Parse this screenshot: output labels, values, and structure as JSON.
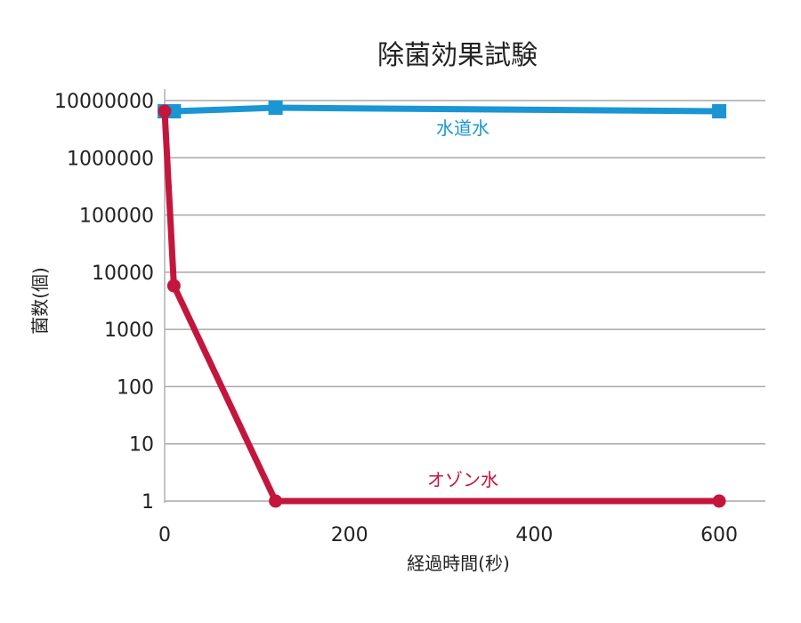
{
  "chart_data": {
    "type": "line",
    "title": "除菌効果試験",
    "xlabel": "経過時間(秒)",
    "ylabel": "菌数(個)",
    "x_ticks": [
      0,
      200,
      400,
      600
    ],
    "y_ticks": [
      "1",
      "10",
      "100",
      "1000",
      "10000",
      "100000",
      "1000000",
      "10000000"
    ],
    "y_scale": "log",
    "xlim": [
      0,
      650
    ],
    "ylim": [
      1,
      10000000
    ],
    "grid": "horizontal",
    "series": [
      {
        "name": "水道水",
        "color": "#1a96d4",
        "marker": "square",
        "points": [
          [
            0,
            6500000
          ],
          [
            10,
            6500000
          ],
          [
            120,
            7500000
          ],
          [
            600,
            6500000
          ]
        ]
      },
      {
        "name": "オゾン水",
        "color": "#c4163c",
        "marker": "circle",
        "points": [
          [
            0,
            6500000
          ],
          [
            10,
            5800
          ],
          [
            120,
            1
          ],
          [
            600,
            1
          ]
        ]
      }
    ]
  }
}
